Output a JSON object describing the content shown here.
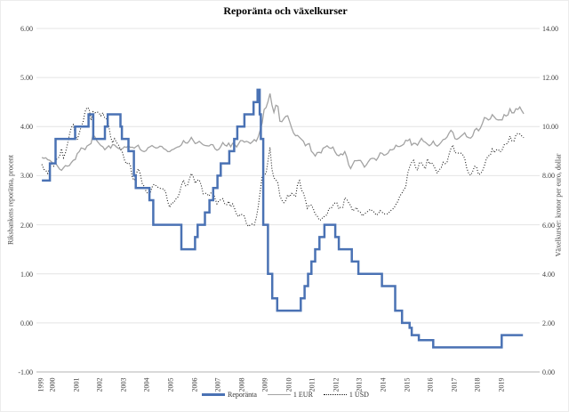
{
  "title": "Reporänta och växelkurser",
  "chart_data": {
    "type": "line",
    "title": "Reporänta och växelkurser",
    "grid": "horizontal",
    "legend_position": "bottom-center",
    "y_axis_left": {
      "label": "Riksbankens reporänta, procent",
      "ticks": [
        "6.00",
        "5.00",
        "4.00",
        "3.00",
        "2.00",
        "1.00",
        "0.00",
        "-1.00"
      ],
      "min": -1,
      "max": 6
    },
    "y_axis_right": {
      "label": "Växelkurser: kronor per euro, dollar",
      "ticks": [
        "14.00",
        "12.00",
        "10.00",
        "8.00",
        "6.00",
        "4.00",
        "2.00",
        "0.00"
      ],
      "min": 0,
      "max": 14
    },
    "x_axis": {
      "ticks": [
        "1999",
        "2000",
        "2001",
        "2002",
        "2003",
        "2004",
        "2005",
        "2006",
        "2007",
        "2008",
        "2009",
        "2010",
        "2011",
        "2012",
        "2013",
        "2014",
        "2015",
        "2016",
        "2017",
        "2018",
        "2019"
      ],
      "start": 1999.5,
      "end": 2019.92
    },
    "legend": [
      "Reporänta",
      "1 EUR",
      "1 USD"
    ],
    "colors": {
      "repo": "#4a72b4",
      "eur": "#a3a3a3",
      "usd": "#1a1a1a",
      "grid": "#e4e4e4",
      "axis": "#b3b3b3"
    },
    "series": [
      {
        "name": "Reporänta",
        "axis": "left",
        "style": "step",
        "points": [
          [
            1999.54,
            2.9
          ],
          [
            1999.88,
            3.25
          ],
          [
            2000.12,
            3.75
          ],
          [
            2000.95,
            4.0
          ],
          [
            2001.52,
            4.25
          ],
          [
            2001.72,
            3.75
          ],
          [
            2002.21,
            4.0
          ],
          [
            2002.33,
            4.25
          ],
          [
            2002.87,
            4.0
          ],
          [
            2002.93,
            3.75
          ],
          [
            2003.21,
            3.5
          ],
          [
            2003.44,
            3.0
          ],
          [
            2003.52,
            2.75
          ],
          [
            2004.1,
            2.5
          ],
          [
            2004.26,
            2.0
          ],
          [
            2005.45,
            1.5
          ],
          [
            2006.03,
            1.75
          ],
          [
            2006.14,
            2.0
          ],
          [
            2006.45,
            2.25
          ],
          [
            2006.64,
            2.5
          ],
          [
            2006.8,
            2.75
          ],
          [
            2006.98,
            3.0
          ],
          [
            2007.12,
            3.25
          ],
          [
            2007.48,
            3.5
          ],
          [
            2007.69,
            3.75
          ],
          [
            2007.82,
            4.0
          ],
          [
            2008.12,
            4.25
          ],
          [
            2008.51,
            4.5
          ],
          [
            2008.68,
            4.75
          ],
          [
            2008.77,
            4.25
          ],
          [
            2008.82,
            3.75
          ],
          [
            2008.92,
            2.0
          ],
          [
            2009.12,
            1.0
          ],
          [
            2009.3,
            0.5
          ],
          [
            2009.51,
            0.25
          ],
          [
            2010.51,
            0.5
          ],
          [
            2010.67,
            0.75
          ],
          [
            2010.82,
            1.0
          ],
          [
            2010.96,
            1.25
          ],
          [
            2011.12,
            1.5
          ],
          [
            2011.3,
            1.75
          ],
          [
            2011.51,
            2.0
          ],
          [
            2011.97,
            1.75
          ],
          [
            2012.12,
            1.5
          ],
          [
            2012.67,
            1.25
          ],
          [
            2012.95,
            1.0
          ],
          [
            2013.95,
            0.75
          ],
          [
            2014.51,
            0.25
          ],
          [
            2014.8,
            0.0
          ],
          [
            2015.12,
            -0.1
          ],
          [
            2015.21,
            -0.25
          ],
          [
            2015.51,
            -0.35
          ],
          [
            2016.12,
            -0.5
          ],
          [
            2019.02,
            -0.25
          ]
        ],
        "end": 2019.92
      },
      {
        "name": "1 EUR",
        "axis": "right",
        "style": "line",
        "start": 1999.54,
        "step_years": 0.08333,
        "values": [
          8.74,
          8.71,
          8.73,
          8.65,
          8.63,
          8.56,
          8.47,
          8.51,
          8.39,
          8.27,
          8.22,
          8.32,
          8.41,
          8.39,
          8.41,
          8.53,
          8.63,
          8.66,
          8.9,
          8.98,
          9.13,
          9.11,
          9.06,
          9.21,
          9.26,
          9.31,
          9.67,
          9.58,
          9.42,
          9.32,
          9.23,
          9.18,
          9.06,
          9.14,
          9.22,
          9.12,
          9.27,
          9.25,
          9.17,
          9.11,
          9.08,
          9.1,
          9.18,
          9.15,
          9.23,
          9.15,
          9.16,
          9.12,
          9.19,
          9.24,
          9.07,
          9.01,
          8.98,
          9.02,
          9.14,
          9.18,
          9.23,
          9.17,
          9.13,
          9.14,
          9.2,
          9.19,
          9.1,
          9.06,
          8.98,
          8.98,
          9.05,
          9.08,
          9.13,
          9.17,
          9.19,
          9.26,
          9.43,
          9.34,
          9.33,
          9.42,
          9.56,
          9.43,
          9.31,
          9.34,
          9.4,
          9.33,
          9.26,
          9.23,
          9.22,
          9.21,
          9.27,
          9.26,
          9.1,
          9.04,
          9.08,
          9.19,
          9.35,
          9.25,
          9.21,
          9.33,
          9.18,
          9.32,
          9.27,
          9.17,
          9.3,
          9.43,
          9.43,
          9.37,
          9.4,
          9.37,
          9.31,
          9.38,
          9.47,
          9.4,
          9.58,
          9.85,
          10.15,
          10.7,
          10.78,
          11.03,
          11.35,
          10.88,
          10.58,
          10.87,
          10.83,
          10.22,
          10.2,
          10.32,
          10.42,
          10.44,
          10.2,
          9.95,
          9.73,
          9.63,
          9.64,
          9.56,
          9.48,
          9.4,
          9.22,
          9.28,
          9.31,
          9.0,
          8.91,
          8.8,
          8.94,
          8.95,
          8.93,
          9.12,
          9.16,
          9.22,
          9.14,
          9.11,
          9.17,
          8.98,
          8.85,
          8.81,
          8.89,
          8.85,
          8.98,
          8.77,
          8.44,
          8.29,
          8.45,
          8.61,
          8.61,
          8.62,
          8.62,
          8.5,
          8.35,
          8.44,
          8.57,
          8.68,
          8.71,
          8.7,
          8.63,
          8.75,
          8.93,
          8.91,
          8.83,
          8.86,
          8.92,
          9.06,
          9.05,
          9.09,
          9.24,
          9.19,
          9.19,
          9.23,
          9.28,
          9.45,
          9.42,
          9.49,
          9.24,
          9.32,
          9.31,
          9.24,
          9.39,
          9.52,
          9.4,
          9.36,
          9.29,
          9.22,
          9.28,
          9.41,
          9.26,
          9.2,
          9.27,
          9.36,
          9.47,
          9.49,
          9.57,
          9.73,
          9.85,
          9.76,
          9.51,
          9.48,
          9.53,
          9.6,
          9.67,
          9.75,
          9.59,
          9.55,
          9.53,
          9.62,
          9.85,
          9.93,
          9.83,
          9.94,
          10.13,
          10.37,
          10.34,
          10.27,
          10.31,
          10.49,
          10.4,
          10.3,
          10.27,
          10.28,
          10.27,
          10.49,
          10.43,
          10.48,
          10.73,
          10.56,
          10.56,
          10.73,
          10.7,
          10.8,
          10.65,
          10.52
        ]
      },
      {
        "name": "1 USD",
        "axis": "right",
        "style": "dotted",
        "start": 1999.54,
        "step_years": 0.08333,
        "values": [
          8.46,
          8.26,
          8.22,
          8.09,
          8.34,
          8.48,
          8.39,
          8.65,
          8.69,
          8.79,
          9.1,
          8.73,
          8.93,
          9.27,
          9.66,
          9.96,
          10.08,
          9.66,
          9.47,
          9.72,
          10.0,
          10.2,
          10.61,
          10.78,
          10.73,
          10.26,
          10.61,
          10.56,
          10.6,
          10.56,
          10.44,
          10.56,
          10.34,
          10.31,
          10.05,
          9.56,
          9.34,
          9.51,
          9.35,
          9.25,
          9.07,
          8.94,
          8.64,
          8.48,
          8.53,
          8.44,
          7.92,
          7.81,
          8.08,
          8.28,
          8.08,
          7.69,
          7.57,
          7.36,
          7.25,
          7.27,
          7.53,
          7.65,
          7.59,
          7.53,
          7.49,
          7.46,
          7.46,
          7.32,
          6.93,
          6.71,
          6.9,
          6.89,
          7.04,
          7.1,
          7.29,
          7.62,
          7.82,
          7.59,
          7.6,
          7.85,
          8.09,
          7.95,
          7.69,
          7.81,
          7.83,
          7.62,
          7.26,
          7.29,
          7.25,
          7.17,
          7.3,
          7.37,
          7.08,
          6.85,
          6.98,
          7.02,
          7.06,
          6.84,
          6.82,
          6.96,
          6.73,
          6.85,
          6.66,
          6.43,
          6.33,
          6.43,
          6.41,
          6.35,
          6.05,
          5.93,
          5.99,
          6.03,
          5.99,
          6.27,
          6.72,
          7.35,
          7.99,
          8.03,
          8.09,
          8.62,
          9.15,
          8.26,
          7.91,
          7.83,
          7.7,
          7.18,
          7.0,
          6.9,
          6.99,
          7.22,
          7.14,
          7.28,
          7.23,
          7.15,
          7.66,
          7.8,
          7.42,
          7.29,
          7.02,
          6.67,
          6.8,
          6.8,
          6.65,
          6.43,
          6.36,
          6.19,
          6.2,
          6.32,
          6.34,
          6.42,
          6.67,
          6.66,
          6.79,
          6.89,
          6.89,
          6.65,
          6.72,
          6.71,
          7.1,
          7.04,
          6.89,
          6.79,
          6.57,
          6.62,
          6.71,
          6.54,
          6.5,
          6.36,
          6.44,
          6.5,
          6.56,
          6.63,
          6.57,
          6.51,
          6.39,
          6.44,
          6.58,
          6.51,
          6.44,
          6.45,
          6.44,
          6.55,
          6.62,
          6.68,
          6.83,
          6.95,
          7.17,
          7.28,
          7.42,
          7.55,
          8.1,
          8.36,
          8.54,
          8.63,
          8.35,
          8.22,
          8.54,
          8.52,
          8.39,
          8.28,
          8.69,
          8.48,
          8.54,
          8.45,
          8.28,
          8.1,
          8.24,
          8.31,
          8.55,
          8.49,
          8.54,
          8.86,
          9.11,
          9.25,
          8.93,
          8.94,
          8.91,
          8.92,
          8.85,
          8.7,
          8.32,
          8.09,
          8.02,
          8.17,
          8.38,
          8.36,
          8.05,
          8.07,
          8.19,
          8.41,
          8.69,
          8.81,
          8.83,
          9.09,
          8.94,
          9.05,
          9.07,
          8.97,
          9.05,
          9.26,
          9.28,
          9.34,
          9.61,
          9.42,
          9.41,
          9.66,
          9.73,
          9.7,
          9.62,
          9.55
        ]
      }
    ]
  }
}
